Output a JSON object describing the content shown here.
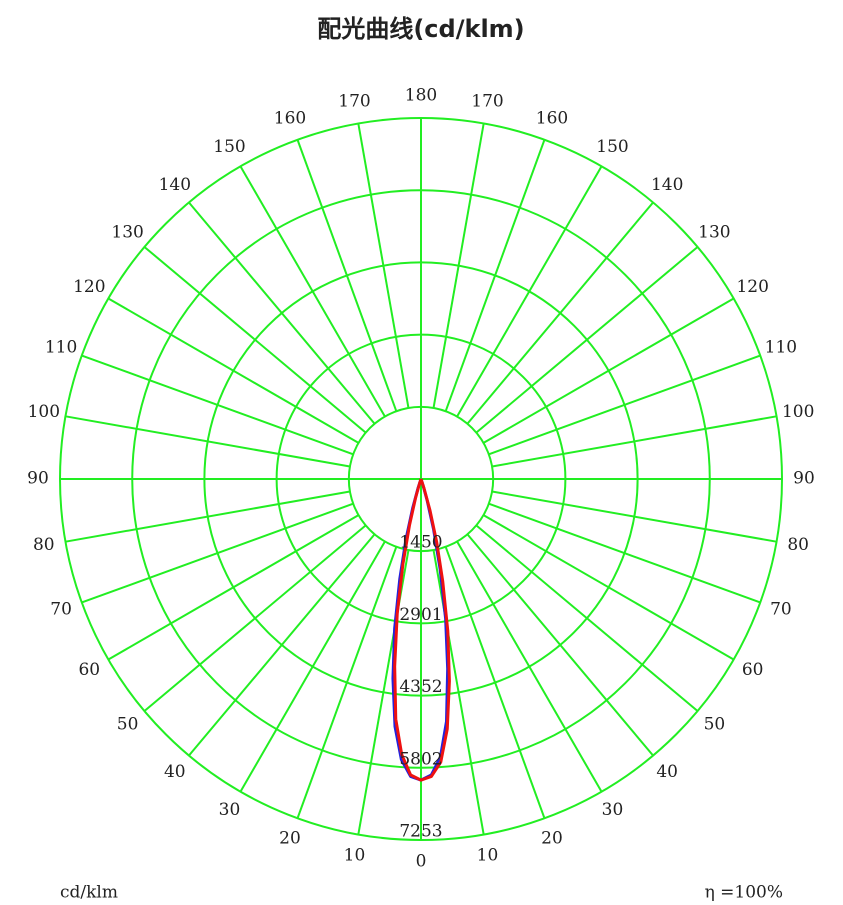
{
  "chart_data": {
    "type": "polar",
    "title": "配光曲线(cd/klm)",
    "unit_label": "cd/klm",
    "efficiency": "η =100%",
    "grid_color": "#22ee22",
    "rlim": [
      0,
      7253
    ],
    "rticks": [
      1450,
      2901,
      4352,
      5802,
      7253
    ],
    "xticks": [
      {
        "value": -170,
        "label": "170"
      },
      {
        "value": -160,
        "label": "160"
      },
      {
        "value": -150,
        "label": "150"
      },
      {
        "value": -140,
        "label": "140"
      },
      {
        "value": -130,
        "label": "130"
      },
      {
        "value": -120,
        "label": "120"
      },
      {
        "value": -110,
        "label": "110"
      },
      {
        "value": -100,
        "label": "100"
      },
      {
        "value": -90,
        "label": "90"
      },
      {
        "value": -80,
        "label": "80"
      },
      {
        "value": -70,
        "label": "70"
      },
      {
        "value": -60,
        "label": "60"
      },
      {
        "value": -50,
        "label": "50"
      },
      {
        "value": -40,
        "label": "40"
      },
      {
        "value": -30,
        "label": "30"
      },
      {
        "value": -20,
        "label": "20"
      },
      {
        "value": -10,
        "label": "10"
      },
      0,
      10,
      20,
      30,
      40,
      50,
      60,
      70,
      80,
      90,
      100,
      110,
      120,
      130,
      140,
      150,
      160,
      170,
      180
    ],
    "x": [
      -20,
      -18,
      -16,
      -14,
      -12,
      -10,
      -8,
      -6,
      -4,
      -2,
      0,
      2,
      4,
      6,
      8,
      10,
      12,
      14,
      16,
      18,
      20
    ],
    "series": [
      {
        "color": "#2222dd",
        "values": [
          0,
          200,
          600,
          1250,
          2050,
          3050,
          4050,
          5000,
          5650,
          5980,
          6050,
          5950,
          5600,
          4900,
          3850,
          2850,
          1850,
          1050,
          450,
          120,
          0
        ]
      },
      {
        "color": "#ee1111",
        "values": [
          0,
          100,
          400,
          950,
          1750,
          2750,
          3800,
          4850,
          5550,
          5950,
          6050,
          5980,
          5700,
          5050,
          4100,
          3100,
          2100,
          1300,
          650,
          200,
          0
        ]
      }
    ]
  }
}
